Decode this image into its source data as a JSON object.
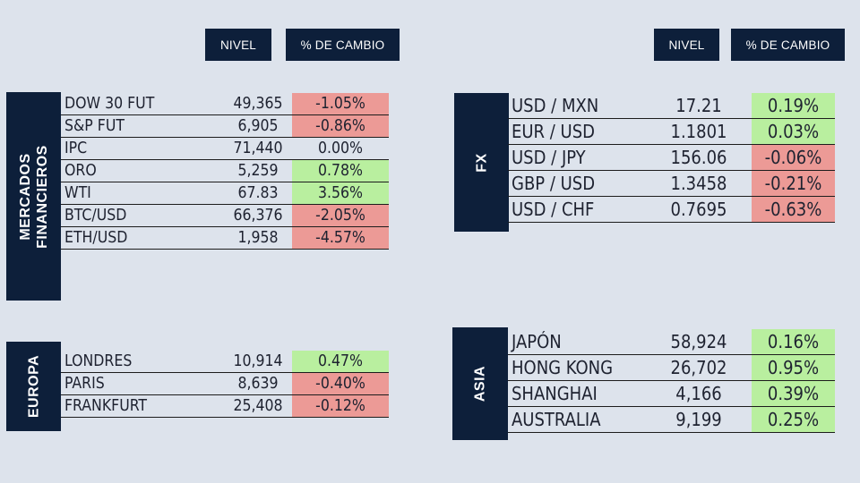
{
  "headers": {
    "left": {
      "nivel": "NIVEL",
      "cambio": "% DE CAMBIO"
    },
    "right": {
      "nivel": "NIVEL",
      "cambio": "% DE CAMBIO"
    }
  },
  "mercados": {
    "label_line1": "MERCADOS",
    "label_line2": "FINANCIEROS",
    "rows": [
      {
        "name": "DOW 30 FUT",
        "nivel": "49,365",
        "cambio": "-1.05%",
        "status": "neg"
      },
      {
        "name": "S&P FUT",
        "nivel": "6,905",
        "cambio": "-0.86%",
        "status": "neg"
      },
      {
        "name": "IPC",
        "nivel": "71,440",
        "cambio": "0.00%",
        "status": "neu"
      },
      {
        "name": "ORO",
        "nivel": "5,259",
        "cambio": "0.78%",
        "status": "pos"
      },
      {
        "name": "WTI",
        "nivel": "67.83",
        "cambio": "3.56%",
        "status": "pos"
      },
      {
        "name": "BTC/USD",
        "nivel": "66,376",
        "cambio": "-2.05%",
        "status": "neg"
      },
      {
        "name": "ETH/USD",
        "nivel": "1,958",
        "cambio": "-4.57%",
        "status": "neg"
      }
    ]
  },
  "europa": {
    "label": "EUROPA",
    "rows": [
      {
        "name": "LONDRES",
        "nivel": "10,914",
        "cambio": "0.47%",
        "status": "pos"
      },
      {
        "name": "PARIS",
        "nivel": "8,639",
        "cambio": "-0.40%",
        "status": "neg"
      },
      {
        "name": "FRANKFURT",
        "nivel": "25,408",
        "cambio": "-0.12%",
        "status": "neg"
      }
    ]
  },
  "fx": {
    "label": "FX",
    "rows": [
      {
        "name": "USD / MXN",
        "nivel": "17.21",
        "cambio": "0.19%",
        "status": "pos"
      },
      {
        "name": "EUR / USD",
        "nivel": "1.1801",
        "cambio": "0.03%",
        "status": "pos"
      },
      {
        "name": "USD / JPY",
        "nivel": "156.06",
        "cambio": "-0.06%",
        "status": "neg"
      },
      {
        "name": "GBP / USD",
        "nivel": "1.3458",
        "cambio": "-0.21%",
        "status": "neg"
      },
      {
        "name": "USD / CHF",
        "nivel": "0.7695",
        "cambio": "-0.63%",
        "status": "neg"
      }
    ]
  },
  "asia": {
    "label": "ASIA",
    "rows": [
      {
        "name": "JAPÓN",
        "nivel": "58,924",
        "cambio": "0.16%",
        "status": "pos"
      },
      {
        "name": "HONG KONG",
        "nivel": "26,702",
        "cambio": "0.95%",
        "status": "pos"
      },
      {
        "name": "SHANGHAI",
        "nivel": "4,166",
        "cambio": "0.39%",
        "status": "pos"
      },
      {
        "name": "AUSTRALIA",
        "nivel": "9,199",
        "cambio": "0.25%",
        "status": "pos"
      }
    ]
  },
  "colors": {
    "navy": "#0d1f3a",
    "positive": "#b9ef9f",
    "negative": "#ec9a96",
    "background": "#dde3ec"
  }
}
